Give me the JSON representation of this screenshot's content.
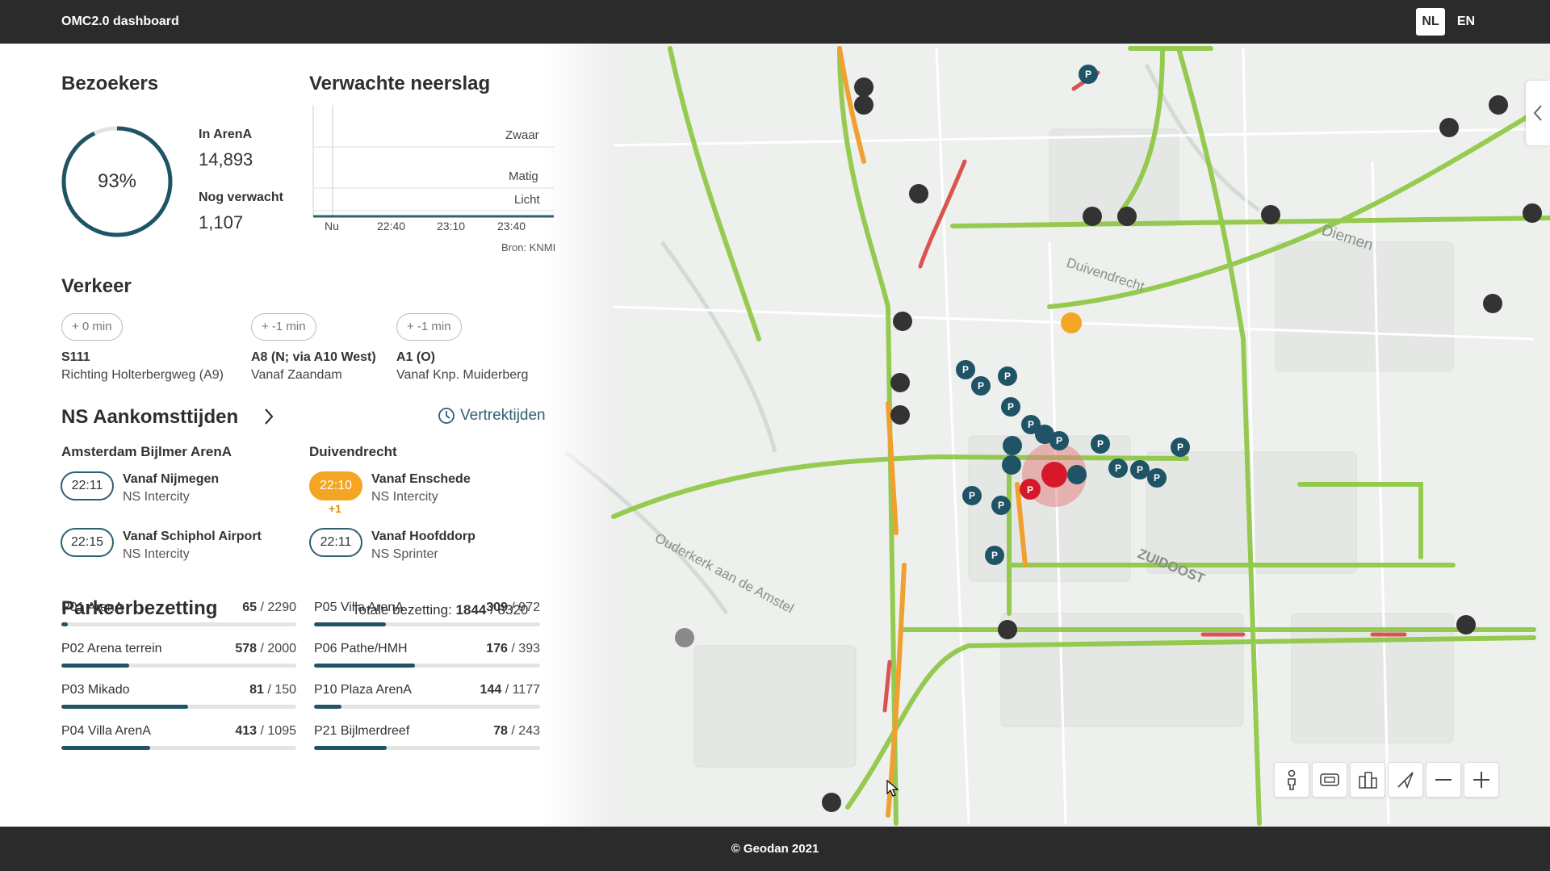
{
  "header": {
    "title": "OMC2.0 dashboard",
    "lang_nl": "NL",
    "lang_en": "EN",
    "active_lang": "NL"
  },
  "bezoekers": {
    "heading": "Bezoekers",
    "percentage": "93%",
    "percentage_value": 0.93,
    "in_arena_label": "In ArenA",
    "in_arena_value": "14,893",
    "nog_verwacht_label": "Nog verwacht",
    "nog_verwacht_value": "1,107"
  },
  "neerslag": {
    "heading": "Verwachte neerslag",
    "levels": [
      "Zwaar",
      "Matig",
      "Licht"
    ],
    "times": [
      "Nu",
      "22:40",
      "23:10",
      "23:40"
    ],
    "source": "Bron: KNMI"
  },
  "verkeer": {
    "heading": "Verkeer",
    "routes": [
      {
        "delay": "+ 0 min",
        "name": "S111",
        "sub": "Richting Holterbergweg (A9)"
      },
      {
        "delay": "+ -1 min",
        "name": "A8 (N; via A10 West)",
        "sub": "Vanaf Zaandam"
      },
      {
        "delay": "+ -1 min",
        "name": "A1 (O)",
        "sub": "Vanaf Knp. Muiderberg"
      }
    ]
  },
  "ns": {
    "heading": "NS Aankomsttijden",
    "vertrek_link": "Vertrektijden",
    "stations": [
      {
        "name": "Amsterdam Bijlmer ArenA",
        "trains": [
          {
            "time": "22:11",
            "from": "Vanaf Nijmegen",
            "type": "NS Intercity"
          },
          {
            "time": "22:15",
            "from": "Vanaf Schiphol Airport",
            "type": "NS Intercity"
          }
        ]
      },
      {
        "name": "Duivendrecht",
        "trains": [
          {
            "time": "22:10",
            "delay": "+1",
            "from": "Vanaf Enschede",
            "type": "NS Intercity"
          },
          {
            "time": "22:11",
            "from": "Vanaf Hoofddorp",
            "type": "NS Sprinter"
          }
        ]
      }
    ]
  },
  "parkeer": {
    "heading": "Parkeerbezetting",
    "total_label": "Totale bezetting:",
    "total_used": "1844",
    "total_capacity": "/ 8320",
    "garages": [
      {
        "name": "P01 ArenA",
        "used": "65",
        "cap": "/ 2290",
        "ratio": 0.028
      },
      {
        "name": "P02 Arena terrein",
        "used": "578",
        "cap": "/ 2000",
        "ratio": 0.289
      },
      {
        "name": "P03 Mikado",
        "used": "81",
        "cap": "/ 150",
        "ratio": 0.54
      },
      {
        "name": "P04 Villa ArenA",
        "used": "413",
        "cap": "/ 1095",
        "ratio": 0.377
      },
      {
        "name": "P05 Villa ArenA",
        "used": "309",
        "cap": "/ 972",
        "ratio": 0.318
      },
      {
        "name": "P06 Pathe/HMH",
        "used": "176",
        "cap": "/ 393",
        "ratio": 0.448
      },
      {
        "name": "P10 Plaza ArenA",
        "used": "144",
        "cap": "/ 1177",
        "ratio": 0.122
      },
      {
        "name": "P21 Bijlmerdreef",
        "used": "78",
        "cap": "/ 243",
        "ratio": 0.321
      }
    ]
  },
  "map": {
    "labels": [
      "Duivendrecht",
      "Diemen",
      "ZUIDOOST",
      "Ouderkerk aan de Amstel"
    ],
    "controls": [
      "person-icon",
      "stadium-icon",
      "buildings-icon",
      "navigate-icon",
      "zoom-out-icon",
      "zoom-in-icon"
    ],
    "colors": {
      "traffic_green": "#8cc63f",
      "traffic_orange": "#f0a030",
      "traffic_red": "#d9534f",
      "marker_teal": "#1f5366",
      "marker_dark": "#333333",
      "marker_red": "#d7182a",
      "marker_orange": "#f3a523"
    }
  },
  "footer": {
    "text": "© Geodan 2021"
  }
}
